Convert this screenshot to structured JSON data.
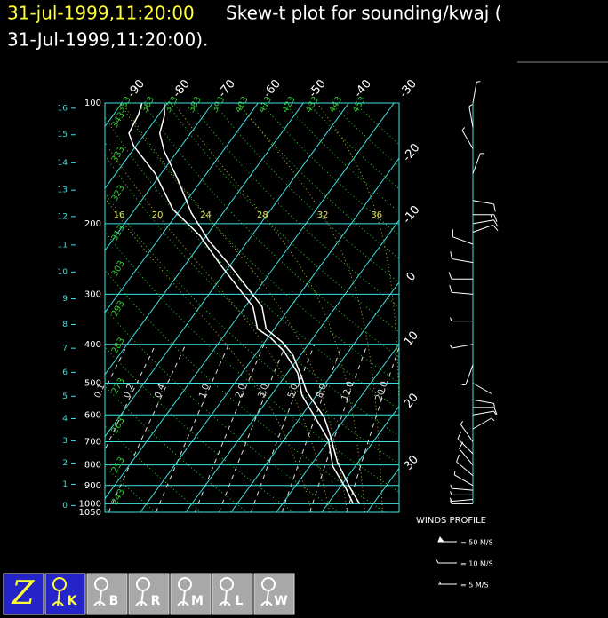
{
  "chart_data": {
    "type": "skewt",
    "title_time": "31-jul-1999,11:20:00",
    "title": "Skew-t plot for sounding/kwaj (",
    "title_continued": "31-Jul-1999,11:20:00).",
    "ylim": [
      1050,
      100
    ],
    "log_y": true,
    "yticks": [
      100,
      200,
      300,
      400,
      500,
      600,
      700,
      800,
      900,
      1000,
      1050
    ],
    "height_ticks": [
      {
        "value": 103,
        "label": "16"
      },
      {
        "value": 120,
        "label": "15"
      },
      {
        "value": 141,
        "label": "14"
      },
      {
        "value": 165,
        "label": "13"
      },
      {
        "value": 192,
        "label": "12"
      },
      {
        "value": 226,
        "label": "11"
      },
      {
        "value": 264,
        "label": "10"
      },
      {
        "value": 308,
        "label": "9"
      },
      {
        "value": 357,
        "label": "8"
      },
      {
        "value": 409,
        "label": "7"
      },
      {
        "value": 470,
        "label": "6"
      },
      {
        "value": 539,
        "label": "5"
      },
      {
        "value": 613,
        "label": "4"
      },
      {
        "value": 696,
        "label": "3"
      },
      {
        "value": 791,
        "label": "2"
      },
      {
        "value": 894,
        "label": "1"
      },
      {
        "value": 1010,
        "label": "0"
      }
    ],
    "xlim": [
      -27.8,
      37.1
    ],
    "xticks": [
      -90,
      -80,
      -70,
      -60,
      -50,
      -40,
      -30,
      -20,
      -10,
      0,
      10,
      20,
      30
    ],
    "dry_adiabats": [
      243,
      253,
      263,
      273,
      283,
      293,
      303,
      313,
      323,
      333,
      343,
      353,
      363,
      373,
      383,
      393,
      403,
      413,
      423,
      433,
      443,
      453
    ],
    "moist_adiabats": [
      16,
      20,
      24,
      28,
      32,
      36
    ],
    "mixing_ratios": [
      0.1,
      0.2,
      0.4,
      {
        "value": 1,
        "label": "1.0"
      },
      {
        "value": 2,
        "label": "2.0"
      },
      {
        "value": 3,
        "label": "3.0"
      },
      {
        "value": 5,
        "label": "5.0"
      },
      {
        "value": 8,
        "label": "8.0"
      },
      {
        "value": 12,
        "label": "12.0"
      },
      {
        "value": 20,
        "label": "20.0"
      }
    ],
    "colors": {
      "axis": "#40e0e0",
      "dry": "#33cc33",
      "moist": "#b8b830",
      "mixing": "#dddddd",
      "profile": "#ffffff",
      "title_time": "#ffff33"
    },
    "series": [
      {
        "color": "#ffffff",
        "pressure": [
          1000,
          917,
          787,
          675,
          609,
          523,
          484,
          426,
          395,
          366,
          322,
          256,
          220,
          188,
          154,
          132,
          119,
          107,
          100
        ],
        "temperature": [
          27.0,
          22.6,
          15.4,
          9.5,
          5.3,
          -2.9,
          -6.1,
          -11.6,
          -16.1,
          -21.8,
          -26.3,
          -39.6,
          -48.8,
          -57.0,
          -65.7,
          -72.9,
          -76.8,
          -78.7,
          -80.7
        ]
      },
      {
        "color": "#ffffff",
        "pressure": [
          1000,
          917,
          807,
          692,
          609,
          536,
          472,
          416,
          385,
          366,
          322,
          256,
          214,
          184,
          150,
          128,
          119,
          107,
          100
        ],
        "temperature": [
          25.6,
          21.6,
          15.1,
          9.8,
          3.3,
          -3.2,
          -7.7,
          -14.3,
          -19.4,
          -23.7,
          -28.3,
          -41.6,
          -51.5,
          -61.7,
          -71.3,
          -80.5,
          -83.6,
          -84.5,
          -85.6
        ]
      }
    ],
    "winds": {
      "pressure": [
        1000,
        975,
        950,
        925,
        900,
        850,
        800,
        750,
        700,
        650,
        600,
        575,
        550,
        500,
        450,
        400,
        350,
        300,
        275,
        250,
        225,
        210,
        200,
        190,
        175,
        150,
        130,
        115,
        100
      ],
      "direction": [
        270,
        265,
        270,
        275,
        300,
        310,
        320,
        315,
        325,
        60,
        80,
        90,
        100,
        120,
        200,
        260,
        270,
        275,
        270,
        280,
        290,
        70,
        80,
        90,
        100,
        20,
        330,
        350,
        10
      ],
      "speed": [
        5,
        6,
        7,
        6,
        8,
        10,
        12,
        10,
        8,
        6,
        8,
        10,
        6,
        4,
        5,
        6,
        8,
        10,
        12,
        14,
        12,
        10,
        12,
        15,
        10,
        8,
        6,
        5,
        5
      ]
    },
    "winds_legend": {
      "title": "WINDS PROFILE",
      "entries": [
        "= 50 M/S",
        "= 10 M/S",
        "= 5 M/S"
      ]
    }
  },
  "toolbar": {
    "buttons": [
      "Z",
      "K",
      "B",
      "R",
      "M",
      "L",
      "W"
    ]
  }
}
